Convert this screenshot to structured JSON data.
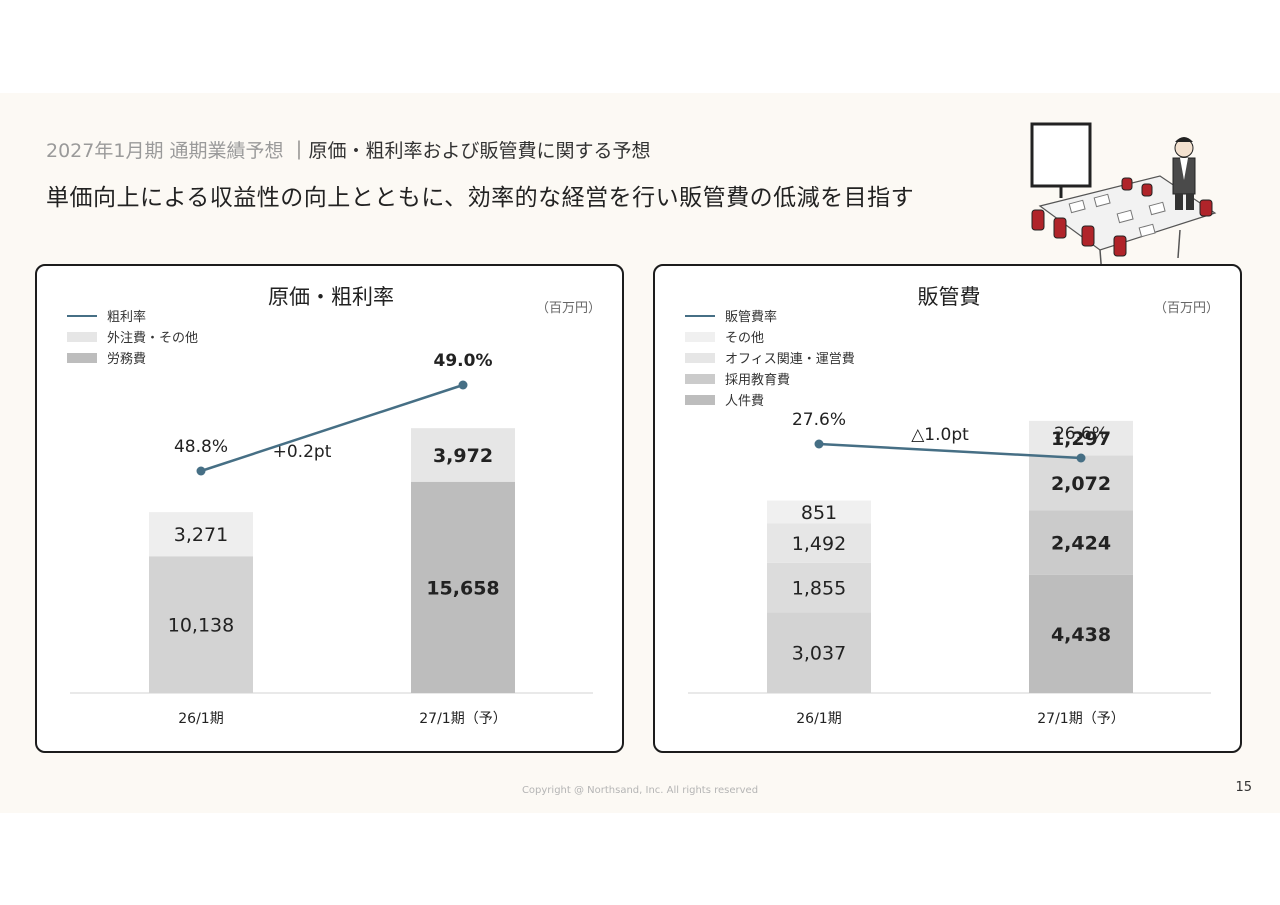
{
  "header": {
    "section": "2027年1月期 通期業績予想",
    "separator": "｜",
    "topic": "原価・粗利率および販管費に関する予想",
    "headline": "単価向上による収益性の向上とともに、効率的な経営を行い販管費の低減を目指す"
  },
  "footer": {
    "copyright": "Copyright @ Northsand, Inc. All rights reserved",
    "page": "15"
  },
  "chart_data": [
    {
      "type": "bar",
      "title": "原価・粗利率",
      "unit": "（百万円）",
      "categories": [
        "26/1期",
        "27/1期（予）"
      ],
      "series": [
        {
          "name": "労務費",
          "values": [
            10138,
            15658
          ],
          "labels": [
            "10,138",
            "15,658"
          ],
          "colors": [
            "#d3d3d3",
            "#bdbdbd"
          ]
        },
        {
          "name": "外注費・その他",
          "values": [
            3271,
            3972
          ],
          "labels": [
            "3,271",
            "3,972"
          ],
          "colors": [
            "#eeeeee",
            "#e6e6e6"
          ]
        }
      ],
      "line": {
        "name": "粗利率",
        "values": [
          48.8,
          49.0
        ],
        "labels": [
          "48.8%",
          "49.0%"
        ],
        "color": "#466f85"
      },
      "delta_label": "+0.2pt",
      "legend": [
        {
          "name": "粗利率",
          "kind": "line",
          "color": "#466f85"
        },
        {
          "name": "外注費・その他",
          "kind": "bar",
          "color": "#e6e6e6"
        },
        {
          "name": "労務費",
          "kind": "bar",
          "color": "#bdbdbd"
        }
      ],
      "bold_category_index": 1
    },
    {
      "type": "bar",
      "title": "販管費",
      "unit": "（百万円）",
      "categories": [
        "26/1期",
        "27/1期（予）"
      ],
      "series": [
        {
          "name": "人件費",
          "values": [
            3037,
            4438
          ],
          "labels": [
            "3,037",
            "4,438"
          ],
          "colors": [
            "#d3d3d3",
            "#bdbdbd"
          ]
        },
        {
          "name": "採用教育費",
          "values": [
            1855,
            2424
          ],
          "labels": [
            "1,855",
            "2,424"
          ],
          "colors": [
            "#dcdcdc",
            "#cbcbcb"
          ]
        },
        {
          "name": "オフィス関連・運営費",
          "values": [
            1492,
            2072
          ],
          "labels": [
            "1,492",
            "2,072"
          ],
          "colors": [
            "#e6e6e6",
            "#dadada"
          ]
        },
        {
          "name": "その他",
          "values": [
            851,
            1297
          ],
          "labels": [
            "851",
            "1,297"
          ],
          "colors": [
            "#f0f0f0",
            "#eaeaea"
          ]
        }
      ],
      "line": {
        "name": "販管費率",
        "values": [
          27.6,
          26.6
        ],
        "labels": [
          "27.6%",
          "26.6%"
        ],
        "color": "#466f85"
      },
      "delta_label": "△1.0pt",
      "legend": [
        {
          "name": "販管費率",
          "kind": "line",
          "color": "#466f85"
        },
        {
          "name": "その他",
          "kind": "bar",
          "color": "#f0f0f0"
        },
        {
          "name": "オフィス関連・運営費",
          "kind": "bar",
          "color": "#e6e6e6"
        },
        {
          "name": "採用教育費",
          "kind": "bar",
          "color": "#cbcbcb"
        },
        {
          "name": "人件費",
          "kind": "bar",
          "color": "#bdbdbd"
        }
      ],
      "bold_category_index": 1
    }
  ]
}
